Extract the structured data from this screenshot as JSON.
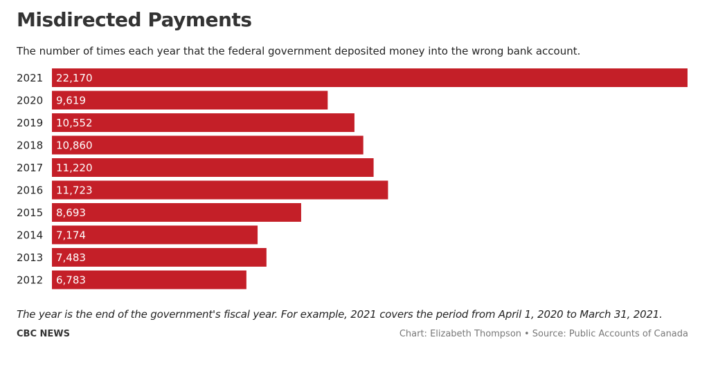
{
  "header": {
    "title": "Misdirected Payments",
    "subtitle": "The number of times each year that the federal government deposited money into the wrong bank account."
  },
  "footer": {
    "footnote": "The year is the end of the government's fiscal year. For example, 2021 covers the period from April 1, 2020 to March 31, 2021.",
    "brand": "CBC NEWS",
    "chart_credit": "Chart: Elizabeth Thompson",
    "separator": "•",
    "source": "Source: Public Accounts of Canada"
  },
  "colors": {
    "bar": "#c41f28",
    "bar_label": "#ffffff",
    "category_label": "#222222"
  },
  "chart_data": {
    "type": "bar",
    "orientation": "horizontal",
    "title": "Misdirected Payments",
    "subtitle": "The number of times each year that the federal government deposited money into the wrong bank account.",
    "categories": [
      "2021",
      "2020",
      "2019",
      "2018",
      "2017",
      "2016",
      "2015",
      "2014",
      "2013",
      "2012"
    ],
    "values": [
      22170,
      9619,
      10552,
      10860,
      11220,
      11723,
      8693,
      7174,
      7483,
      6783
    ],
    "value_labels": [
      "22,170",
      "9,619",
      "10,552",
      "10,860",
      "11,220",
      "11,723",
      "8,693",
      "7,174",
      "7,483",
      "6,783"
    ],
    "xlim": [
      0,
      22170
    ],
    "grid": false,
    "legend": "none",
    "data_labels": "inside-start"
  }
}
